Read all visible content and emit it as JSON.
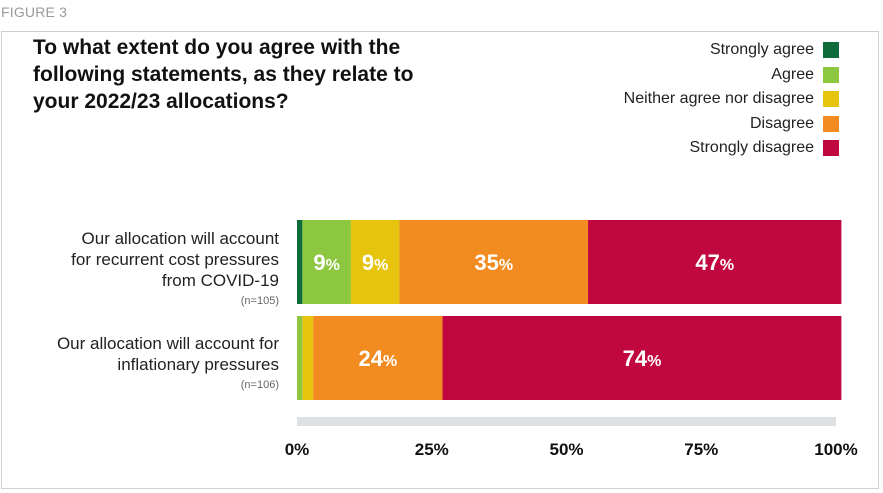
{
  "figure_label": "FIGURE 3",
  "chart_data": {
    "type": "bar",
    "orientation": "horizontal",
    "stacked": true,
    "title": "To what extent do you agree with the following statements, as they relate to your 2022/23 allocations?",
    "categories": [
      {
        "label": "Our allocation will account for recurrent cost pressures from COVID-19",
        "n": "(n=105)"
      },
      {
        "label": "Our allocation will account for inflationary pressures",
        "n": "(n=106)"
      }
    ],
    "series": [
      {
        "name": "Strongly agree",
        "color": "#0e6b3a",
        "values": [
          1,
          0
        ],
        "labels": [
          "",
          ""
        ]
      },
      {
        "name": "Agree",
        "color": "#8dc63f",
        "values": [
          9,
          1
        ],
        "labels": [
          "9",
          ""
        ]
      },
      {
        "name": "Neither agree nor disagree",
        "color": "#e6c30c",
        "values": [
          9,
          2
        ],
        "labels": [
          "9",
          ""
        ]
      },
      {
        "name": "Disagree",
        "color": "#f28c20",
        "values": [
          35,
          24
        ],
        "labels": [
          "35",
          "24"
        ]
      },
      {
        "name": "Strongly disagree",
        "color": "#c0073f",
        "values": [
          47,
          74
        ],
        "labels": [
          "47",
          "74"
        ]
      }
    ],
    "label_suffix": "%",
    "x_ticks": [
      "0%",
      "25%",
      "50%",
      "75%",
      "100%"
    ],
    "xlim": [
      0,
      100
    ],
    "legend_position": "top-right",
    "grid": false
  }
}
